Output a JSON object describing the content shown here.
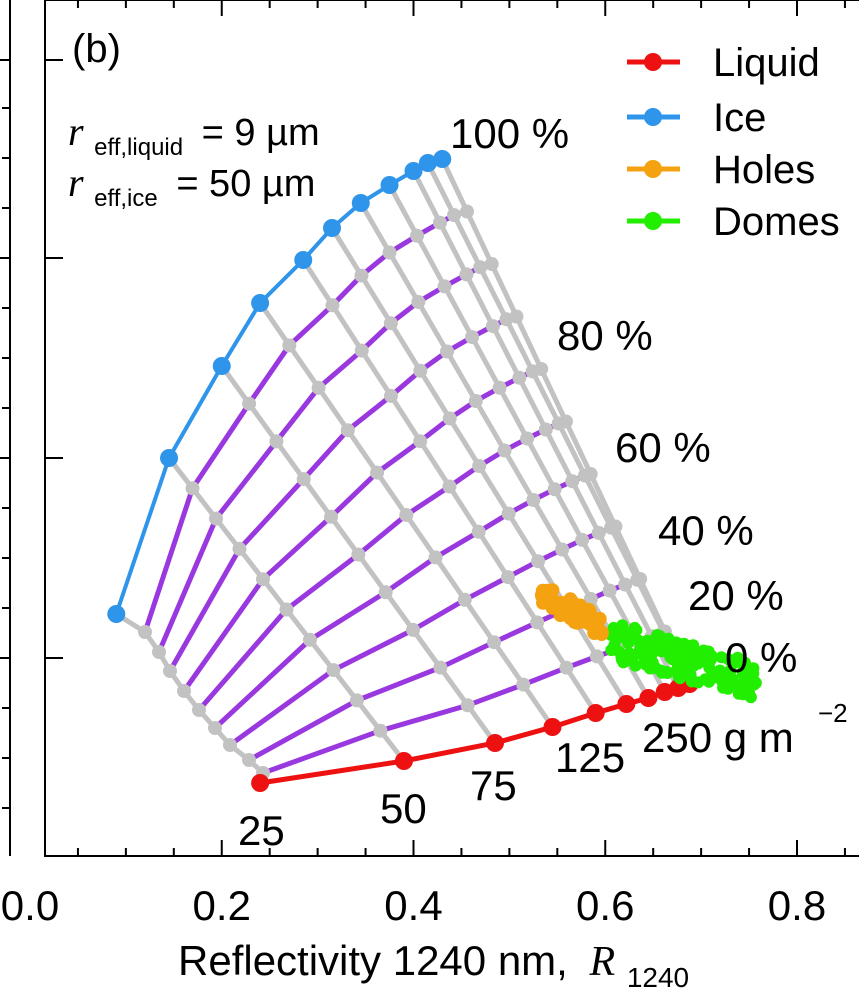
{
  "chart_data": {
    "type": "line",
    "panel_label": "(b)",
    "xlabel": "Reflectivity 1240 nm,",
    "xlabel_symbol": "R",
    "xlabel_subscript": "1240",
    "xlim": [
      0.0,
      0.85
    ],
    "x_ticks": [
      "0.0",
      "0.2",
      "0.4",
      "0.6",
      "0.8"
    ],
    "annotations": {
      "r_liquid_symbol": "r",
      "r_liquid_sub": "eff,liquid",
      "r_liquid_value": "= 9 µm",
      "r_ice_symbol": "r",
      "r_ice_sub": "eff,ice",
      "r_ice_value": "= 50 µm"
    },
    "legend": {
      "position": "top-right",
      "entries": [
        {
          "label": "Liquid",
          "color": "#ee1111"
        },
        {
          "label": "Ice",
          "color": "#2f95ea"
        },
        {
          "label": "Holes",
          "color": "#f5a210"
        },
        {
          "label": "Domes",
          "color": "#22ee00"
        }
      ]
    },
    "colors": {
      "liquid": "#ee1111",
      "ice": "#2f95ea",
      "holes": "#f5a210",
      "domes": "#22ee00",
      "lwp_line": "#9a38e0",
      "grid_line": "#c2c2c2"
    },
    "lwp_labels": [
      "25",
      "50",
      "75",
      "125",
      "250 g m"
    ],
    "lwp_unit_exp": "−2",
    "ice_fraction_labels": [
      "100 %",
      "80 %",
      "60 %",
      "40 %",
      "20 %",
      "0 %"
    ],
    "liquid_x": [
      0.24,
      0.39,
      0.485,
      0.545,
      0.59,
      0.622,
      0.645,
      0.662,
      0.676,
      0.688
    ],
    "ice_x": [
      0.09,
      0.145,
      0.2,
      0.24,
      0.285,
      0.315,
      0.345,
      0.375,
      0.4,
      0.415,
      0.43
    ]
  }
}
